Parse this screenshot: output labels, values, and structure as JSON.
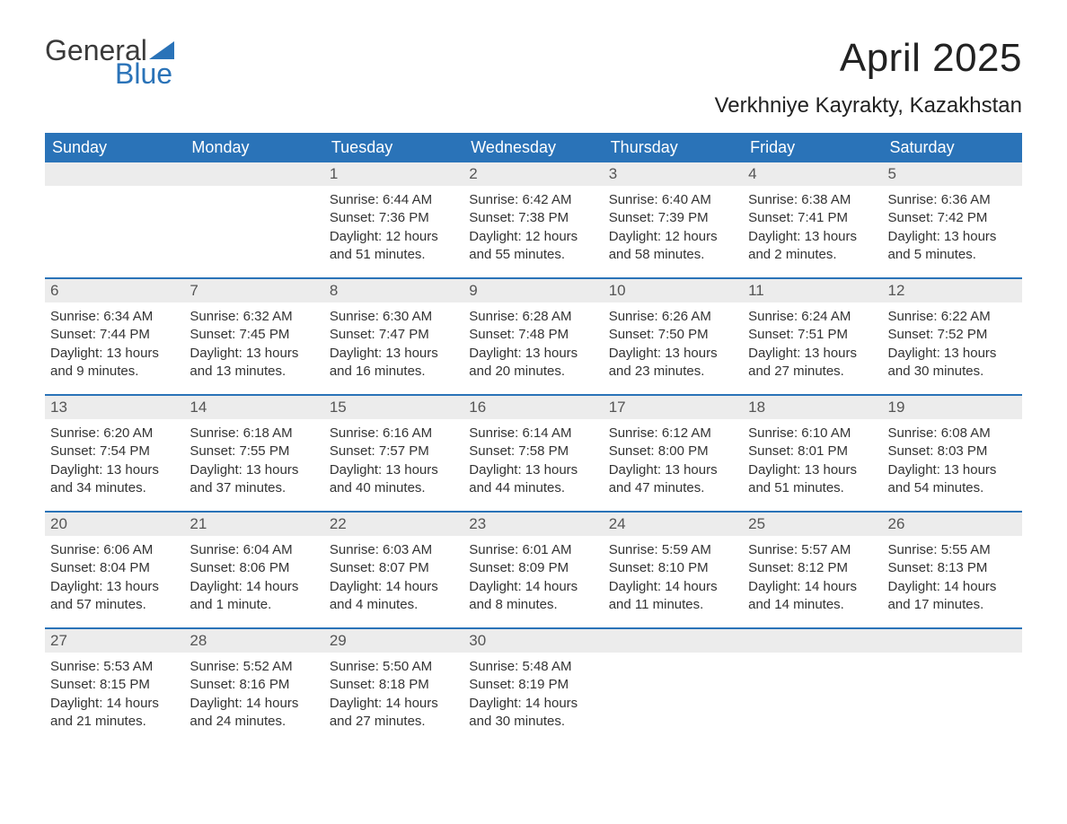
{
  "brand": {
    "text1": "General",
    "text2": "Blue",
    "triangle_color": "#2a73b8"
  },
  "title": "April 2025",
  "location": "Verkhniye Kayrakty, Kazakhstan",
  "colors": {
    "header_bg": "#2a73b8",
    "header_text": "#ffffff",
    "daynum_bg": "#ececec",
    "body_text": "#333333"
  },
  "weekdays": [
    "Sunday",
    "Monday",
    "Tuesday",
    "Wednesday",
    "Thursday",
    "Friday",
    "Saturday"
  ],
  "weeks": [
    [
      {
        "n": "",
        "sr": "",
        "ss": "",
        "dl": ""
      },
      {
        "n": "",
        "sr": "",
        "ss": "",
        "dl": ""
      },
      {
        "n": "1",
        "sr": "Sunrise: 6:44 AM",
        "ss": "Sunset: 7:36 PM",
        "dl": "Daylight: 12 hours and 51 minutes."
      },
      {
        "n": "2",
        "sr": "Sunrise: 6:42 AM",
        "ss": "Sunset: 7:38 PM",
        "dl": "Daylight: 12 hours and 55 minutes."
      },
      {
        "n": "3",
        "sr": "Sunrise: 6:40 AM",
        "ss": "Sunset: 7:39 PM",
        "dl": "Daylight: 12 hours and 58 minutes."
      },
      {
        "n": "4",
        "sr": "Sunrise: 6:38 AM",
        "ss": "Sunset: 7:41 PM",
        "dl": "Daylight: 13 hours and 2 minutes."
      },
      {
        "n": "5",
        "sr": "Sunrise: 6:36 AM",
        "ss": "Sunset: 7:42 PM",
        "dl": "Daylight: 13 hours and 5 minutes."
      }
    ],
    [
      {
        "n": "6",
        "sr": "Sunrise: 6:34 AM",
        "ss": "Sunset: 7:44 PM",
        "dl": "Daylight: 13 hours and 9 minutes."
      },
      {
        "n": "7",
        "sr": "Sunrise: 6:32 AM",
        "ss": "Sunset: 7:45 PM",
        "dl": "Daylight: 13 hours and 13 minutes."
      },
      {
        "n": "8",
        "sr": "Sunrise: 6:30 AM",
        "ss": "Sunset: 7:47 PM",
        "dl": "Daylight: 13 hours and 16 minutes."
      },
      {
        "n": "9",
        "sr": "Sunrise: 6:28 AM",
        "ss": "Sunset: 7:48 PM",
        "dl": "Daylight: 13 hours and 20 minutes."
      },
      {
        "n": "10",
        "sr": "Sunrise: 6:26 AM",
        "ss": "Sunset: 7:50 PM",
        "dl": "Daylight: 13 hours and 23 minutes."
      },
      {
        "n": "11",
        "sr": "Sunrise: 6:24 AM",
        "ss": "Sunset: 7:51 PM",
        "dl": "Daylight: 13 hours and 27 minutes."
      },
      {
        "n": "12",
        "sr": "Sunrise: 6:22 AM",
        "ss": "Sunset: 7:52 PM",
        "dl": "Daylight: 13 hours and 30 minutes."
      }
    ],
    [
      {
        "n": "13",
        "sr": "Sunrise: 6:20 AM",
        "ss": "Sunset: 7:54 PM",
        "dl": "Daylight: 13 hours and 34 minutes."
      },
      {
        "n": "14",
        "sr": "Sunrise: 6:18 AM",
        "ss": "Sunset: 7:55 PM",
        "dl": "Daylight: 13 hours and 37 minutes."
      },
      {
        "n": "15",
        "sr": "Sunrise: 6:16 AM",
        "ss": "Sunset: 7:57 PM",
        "dl": "Daylight: 13 hours and 40 minutes."
      },
      {
        "n": "16",
        "sr": "Sunrise: 6:14 AM",
        "ss": "Sunset: 7:58 PM",
        "dl": "Daylight: 13 hours and 44 minutes."
      },
      {
        "n": "17",
        "sr": "Sunrise: 6:12 AM",
        "ss": "Sunset: 8:00 PM",
        "dl": "Daylight: 13 hours and 47 minutes."
      },
      {
        "n": "18",
        "sr": "Sunrise: 6:10 AM",
        "ss": "Sunset: 8:01 PM",
        "dl": "Daylight: 13 hours and 51 minutes."
      },
      {
        "n": "19",
        "sr": "Sunrise: 6:08 AM",
        "ss": "Sunset: 8:03 PM",
        "dl": "Daylight: 13 hours and 54 minutes."
      }
    ],
    [
      {
        "n": "20",
        "sr": "Sunrise: 6:06 AM",
        "ss": "Sunset: 8:04 PM",
        "dl": "Daylight: 13 hours and 57 minutes."
      },
      {
        "n": "21",
        "sr": "Sunrise: 6:04 AM",
        "ss": "Sunset: 8:06 PM",
        "dl": "Daylight: 14 hours and 1 minute."
      },
      {
        "n": "22",
        "sr": "Sunrise: 6:03 AM",
        "ss": "Sunset: 8:07 PM",
        "dl": "Daylight: 14 hours and 4 minutes."
      },
      {
        "n": "23",
        "sr": "Sunrise: 6:01 AM",
        "ss": "Sunset: 8:09 PM",
        "dl": "Daylight: 14 hours and 8 minutes."
      },
      {
        "n": "24",
        "sr": "Sunrise: 5:59 AM",
        "ss": "Sunset: 8:10 PM",
        "dl": "Daylight: 14 hours and 11 minutes."
      },
      {
        "n": "25",
        "sr": "Sunrise: 5:57 AM",
        "ss": "Sunset: 8:12 PM",
        "dl": "Daylight: 14 hours and 14 minutes."
      },
      {
        "n": "26",
        "sr": "Sunrise: 5:55 AM",
        "ss": "Sunset: 8:13 PM",
        "dl": "Daylight: 14 hours and 17 minutes."
      }
    ],
    [
      {
        "n": "27",
        "sr": "Sunrise: 5:53 AM",
        "ss": "Sunset: 8:15 PM",
        "dl": "Daylight: 14 hours and 21 minutes."
      },
      {
        "n": "28",
        "sr": "Sunrise: 5:52 AM",
        "ss": "Sunset: 8:16 PM",
        "dl": "Daylight: 14 hours and 24 minutes."
      },
      {
        "n": "29",
        "sr": "Sunrise: 5:50 AM",
        "ss": "Sunset: 8:18 PM",
        "dl": "Daylight: 14 hours and 27 minutes."
      },
      {
        "n": "30",
        "sr": "Sunrise: 5:48 AM",
        "ss": "Sunset: 8:19 PM",
        "dl": "Daylight: 14 hours and 30 minutes."
      },
      {
        "n": "",
        "sr": "",
        "ss": "",
        "dl": ""
      },
      {
        "n": "",
        "sr": "",
        "ss": "",
        "dl": ""
      },
      {
        "n": "",
        "sr": "",
        "ss": "",
        "dl": ""
      }
    ]
  ]
}
